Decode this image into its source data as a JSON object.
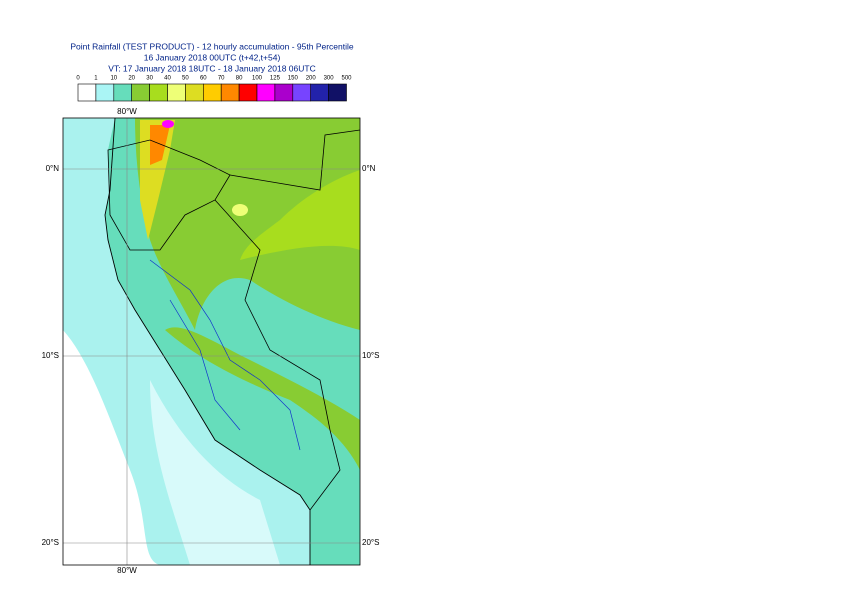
{
  "header": {
    "lines": [
      "Point Rainfall (TEST PRODUCT) - 12 hourly accumulation - 95th Percentile",
      "16 January 2018 00UTC (t+42,t+54)",
      "VT: 17 January 2018 18UTC - 18 January 2018 06UTC"
    ]
  },
  "legend": {
    "labels": [
      "0",
      "1",
      "10",
      "20",
      "30",
      "40",
      "50",
      "60",
      "70",
      "80",
      "100",
      "125",
      "150",
      "200",
      "300",
      "500"
    ],
    "colors": [
      "#ffffff",
      "#aaf5f5",
      "#66ddbb",
      "#88cc33",
      "#a8dd1e",
      "#eeff77",
      "#dddd22",
      "#ffcc00",
      "#ff8800",
      "#ff0000",
      "#ff00ff",
      "#aa00cc",
      "#7744ff",
      "#2222aa",
      "#111166"
    ]
  },
  "map": {
    "lon_label": "80°W",
    "lat_labels": [
      "0°N",
      "10°S",
      "20°S"
    ]
  }
}
